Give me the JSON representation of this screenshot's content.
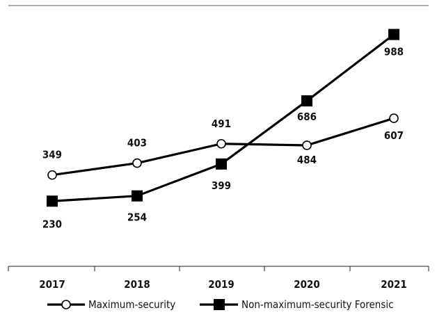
{
  "chart_data": {
    "type": "line",
    "title": "",
    "xlabel": "",
    "ylabel": "",
    "categories": [
      "2017",
      "2018",
      "2019",
      "2020",
      "2021"
    ],
    "ylim": [
      0,
      1050
    ],
    "grid": false,
    "legend_position": "bottom",
    "series": [
      {
        "name": "Maximum-security",
        "values": [
          349,
          403,
          491,
          484,
          607
        ],
        "marker": "open-circle",
        "color": "#000000"
      },
      {
        "name": "Non-maximum-security Forensic",
        "values": [
          230,
          254,
          399,
          686,
          988
        ],
        "marker": "filled-square",
        "color": "#000000"
      }
    ]
  }
}
